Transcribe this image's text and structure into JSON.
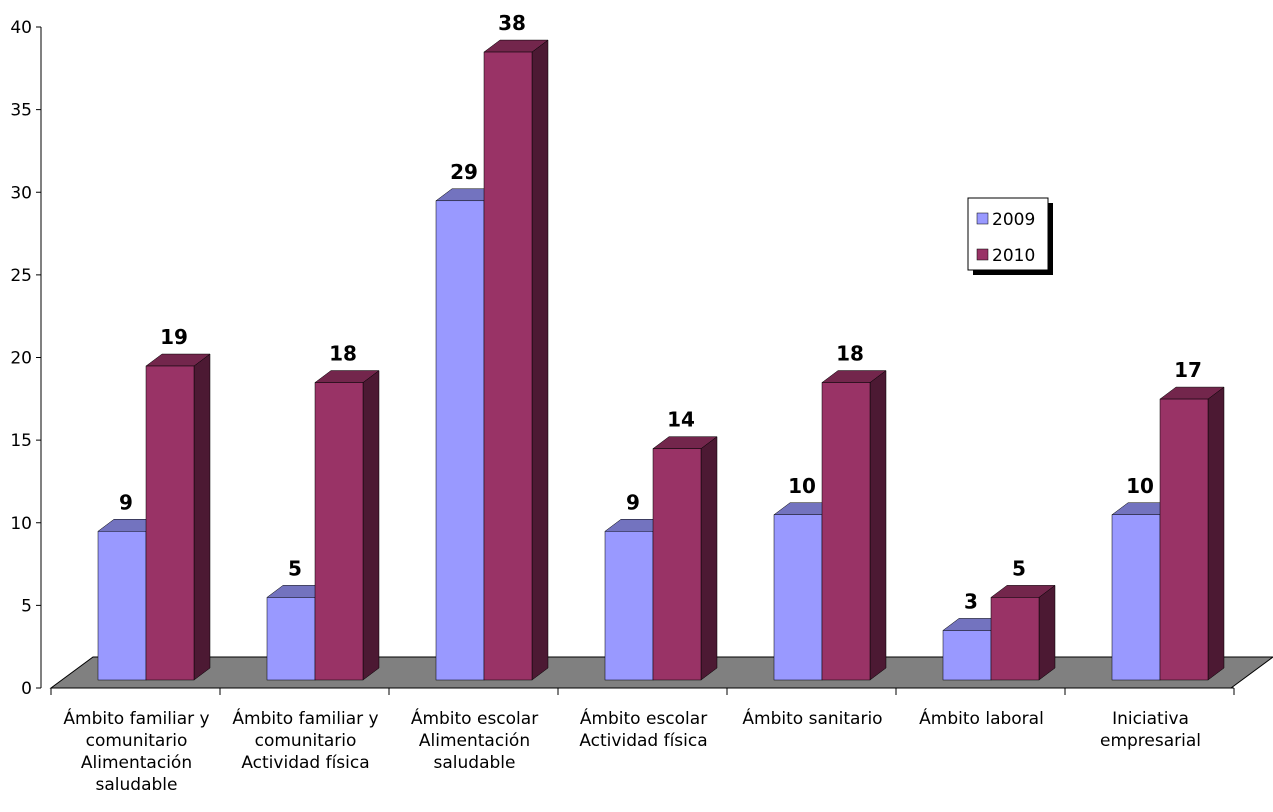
{
  "chart_data": {
    "type": "bar",
    "categories": [
      [
        "Ámbito familiar y",
        "comunitario",
        "Alimentación",
        "saludable"
      ],
      [
        "Ámbito familiar y",
        "comunitario",
        "Actividad física"
      ],
      [
        "Ámbito escolar",
        "Alimentación",
        "saludable"
      ],
      [
        "Ámbito escolar",
        "Actividad física"
      ],
      [
        "Ámbito sanitario"
      ],
      [
        "Ámbito laboral"
      ],
      [
        "Iniciativa",
        "empresarial"
      ]
    ],
    "series": [
      {
        "name": "2009",
        "values": [
          9,
          5,
          29,
          9,
          10,
          3,
          10
        ],
        "color": "#9999ff",
        "top_color": "#7373bf",
        "side_color": "#4c4c80"
      },
      {
        "name": "2010",
        "values": [
          19,
          18,
          38,
          14,
          18,
          5,
          17
        ],
        "color": "#993366",
        "top_color": "#73264c",
        "side_color": "#4c1933"
      }
    ],
    "ylim": [
      0,
      40
    ],
    "yticks": [
      "0",
      "5",
      "10",
      "15",
      "20",
      "25",
      "30",
      "35",
      "40"
    ],
    "floor_color": "#808080",
    "grid": false,
    "legend_position": "right"
  }
}
